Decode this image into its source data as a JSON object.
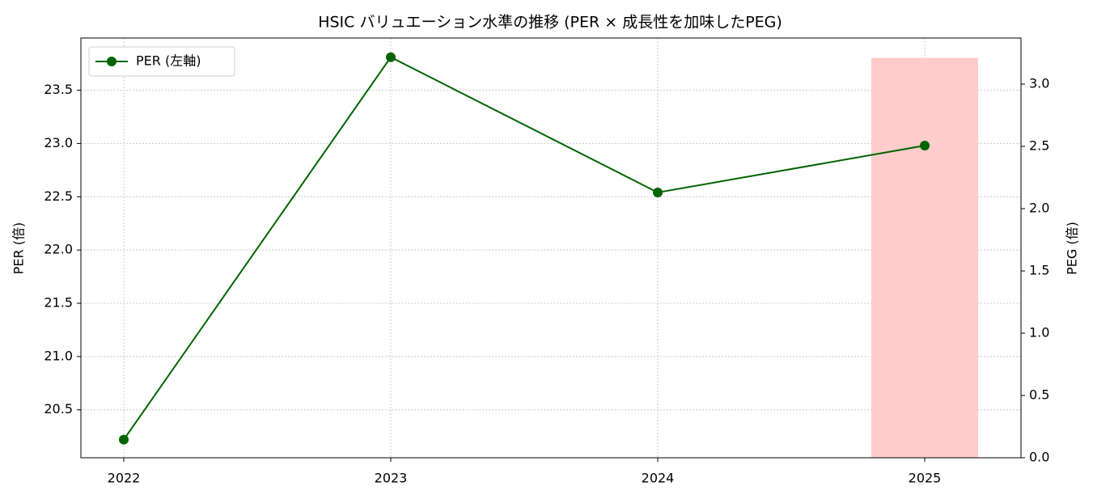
{
  "chart_data": {
    "type": "line-bar",
    "title": "HSIC バリュエーション水準の推移 (PER × 成長性を加味したPEG)",
    "ylabel": "PER (倍)",
    "y2label": "PEG (倍)",
    "categories": [
      "2022",
      "2023",
      "2024",
      "2025"
    ],
    "series": [
      {
        "name": "PER (左軸)",
        "type": "line",
        "color": "#006400",
        "values": [
          20.22,
          23.81,
          22.54,
          22.98
        ]
      },
      {
        "type": "bar",
        "axis": "y2",
        "color": "#ffcccc",
        "values": [
          null,
          null,
          null,
          3.21
        ]
      }
    ],
    "ylim": [
      20.05,
      23.99
    ],
    "yticks": [
      20.5,
      21.0,
      21.5,
      22.0,
      22.5,
      23.0,
      23.5
    ],
    "y2lim": [
      0,
      3.37
    ],
    "y2ticks": [
      0.0,
      0.5,
      1.0,
      1.5,
      2.0,
      2.5,
      3.0
    ],
    "grid": true,
    "legend": "upper left"
  }
}
